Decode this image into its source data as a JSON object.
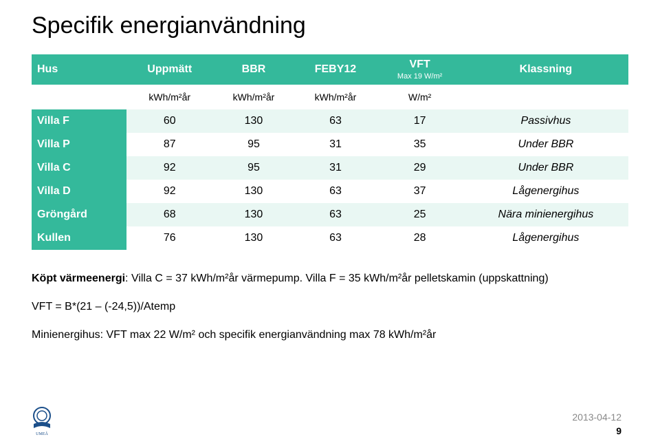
{
  "title": "Specifik energianvändning",
  "table": {
    "header_bg": "#34b99b",
    "header_fg": "#ffffff",
    "row_light_bg": "#e9f7f3",
    "row_white_bg": "#ffffff",
    "columns": [
      {
        "label": "Hus",
        "sub": ""
      },
      {
        "label": "Uppmätt",
        "sub": ""
      },
      {
        "label": "BBR",
        "sub": ""
      },
      {
        "label": "FEBY12",
        "sub": ""
      },
      {
        "label": "VFT",
        "sub": "Max 19 W/m²"
      },
      {
        "label": "Klassning",
        "sub": ""
      }
    ],
    "units": [
      "",
      "kWh/m²år",
      "kWh/m²år",
      "kWh/m²år",
      "W/m²",
      ""
    ],
    "rows": [
      {
        "name": "Villa F",
        "uppmatt": "60",
        "bbr": "130",
        "feby12": "63",
        "vft": "17",
        "klass": "Passivhus",
        "alt": "light"
      },
      {
        "name": "Villa P",
        "uppmatt": "87",
        "bbr": "95",
        "feby12": "31",
        "vft": "35",
        "klass": "Under BBR",
        "alt": "white"
      },
      {
        "name": "Villa C",
        "uppmatt": "92",
        "bbr": "95",
        "feby12": "31",
        "vft": "29",
        "klass": "Under BBR",
        "alt": "light"
      },
      {
        "name": "Villa D",
        "uppmatt": "92",
        "bbr": "130",
        "feby12": "63",
        "vft": "37",
        "klass": "Lågenergihus",
        "alt": "white"
      },
      {
        "name": "Gröngård",
        "uppmatt": "68",
        "bbr": "130",
        "feby12": "63",
        "vft": "25",
        "klass": "Nära minienergihus",
        "alt": "light"
      },
      {
        "name": "Kullen",
        "uppmatt": "76",
        "bbr": "130",
        "feby12": "63",
        "vft": "28",
        "klass": "Lågenergihus",
        "alt": "white"
      }
    ]
  },
  "notes": {
    "line1_bold": "Köpt värmeenergi",
    "line1_rest": ": Villa C = 37 kWh/m²år värmepump. Villa F = 35 kWh/m²år pelletskamin (uppskattning)",
    "line2": "VFT = B*(21 – (-24,5))/Atemp",
    "line3": "Minienergihus: VFT max 22 W/m² och specifik energianvändning max 78 kWh/m²år"
  },
  "footer": {
    "date": "2013-04-12",
    "page": "9"
  }
}
